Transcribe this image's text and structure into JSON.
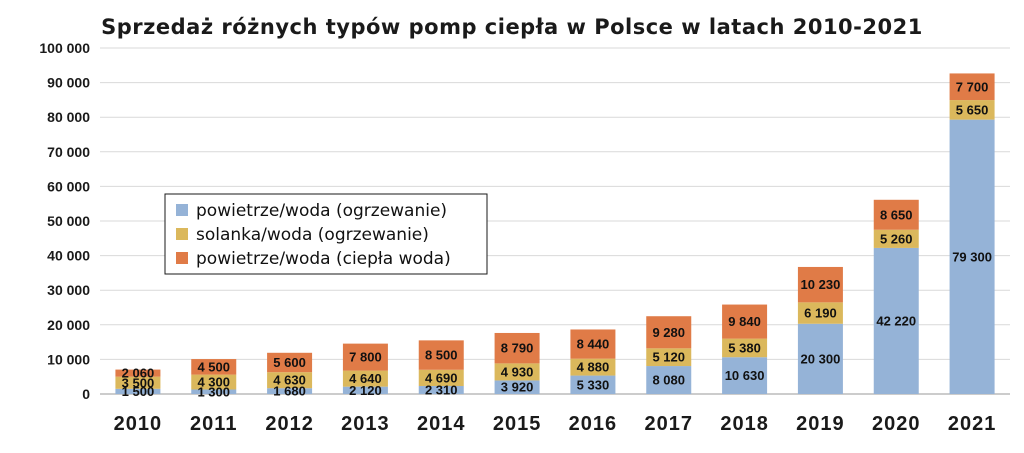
{
  "chart_data": {
    "type": "bar",
    "stacked": true,
    "title": "Sprzedaż różnych typów pomp ciepła w Polsce w latach 2010-2021",
    "xlabel": "",
    "ylabel": "",
    "ylim": [
      0,
      100000
    ],
    "yticks": [
      {
        "value": 0,
        "label": "0"
      },
      {
        "value": 10000,
        "label": "10 000"
      },
      {
        "value": 20000,
        "label": "20 000"
      },
      {
        "value": 30000,
        "label": "30 000"
      },
      {
        "value": 40000,
        "label": "40 000"
      },
      {
        "value": 50000,
        "label": "50 000"
      },
      {
        "value": 60000,
        "label": "60 000"
      },
      {
        "value": 70000,
        "label": "70 000"
      },
      {
        "value": 80000,
        "label": "80 000"
      },
      {
        "value": 90000,
        "label": "90 000"
      },
      {
        "value": 100000,
        "label": "100 000"
      }
    ],
    "grid": true,
    "legend_position": "middle-left",
    "categories": [
      "2010",
      "2011",
      "2012",
      "2013",
      "2014",
      "2015",
      "2016",
      "2017",
      "2018",
      "2019",
      "2020",
      "2021"
    ],
    "series": [
      {
        "name": "powietrze/woda (ogrzewanie)",
        "color": "#95b3d7",
        "values": [
          1500,
          1300,
          1680,
          2120,
          2310,
          3920,
          5330,
          8080,
          10630,
          20300,
          42220,
          79300
        ],
        "labels": [
          "1 500",
          "1 300",
          "1 680",
          "2 120",
          "2 310",
          "3 920",
          "5 330",
          "8 080",
          "10 630",
          "20 300",
          "42 220",
          "79 300"
        ]
      },
      {
        "name": "solanka/woda (ogrzewanie)",
        "color": "#dbb85c",
        "values": [
          3500,
          4300,
          4630,
          4640,
          4690,
          4930,
          4880,
          5120,
          5380,
          6190,
          5260,
          5650
        ],
        "labels": [
          "3 500",
          "4 300",
          "4 630",
          "4 640",
          "4 690",
          "4 930",
          "4 880",
          "5 120",
          "5 380",
          "6 190",
          "5 260",
          "5 650"
        ]
      },
      {
        "name": "powietrze/woda (ciepła woda)",
        "color": "#e07b47",
        "values": [
          2060,
          4500,
          5600,
          7800,
          8500,
          8790,
          8440,
          9280,
          9840,
          10230,
          8650,
          7700
        ],
        "labels": [
          "2 060",
          "4 500",
          "5 600",
          "7 800",
          "8 500",
          "8 790",
          "8 440",
          "9 280",
          "9 840",
          "10 230",
          "8 650",
          "7 700"
        ]
      }
    ]
  }
}
